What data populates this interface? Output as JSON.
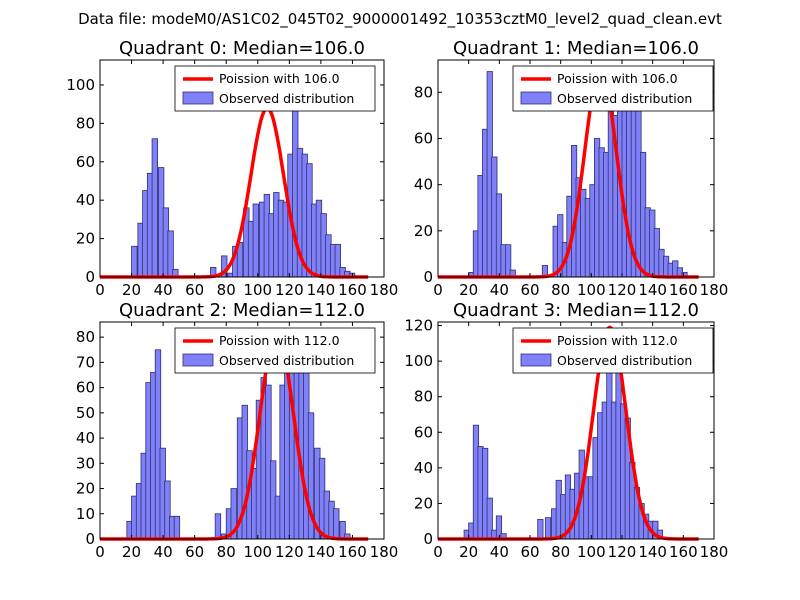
{
  "suptitle": "Data file: modeM0/AS1C02_045T02_9000001492_10353cztM0_level2_quad_clean.evt",
  "colors": {
    "bar_fill": "#8080f8",
    "bar_edge": "#303070",
    "poisson_line": "#ff0000"
  },
  "chart_data": [
    {
      "type": "bar",
      "title": "Quadrant 0: Median=106.0",
      "xlim": [
        0,
        180
      ],
      "ylim": [
        0,
        113
      ],
      "xticks": [
        0,
        20,
        40,
        60,
        80,
        100,
        120,
        140,
        160,
        180
      ],
      "yticks": [
        0,
        20,
        40,
        60,
        80,
        100
      ],
      "bin_width": 3.5,
      "legend": [
        "Poission with 106.0",
        "Observed distribution"
      ],
      "bins": [
        [
          20,
          16
        ],
        [
          24,
          28
        ],
        [
          27,
          45
        ],
        [
          30,
          54
        ],
        [
          33,
          72
        ],
        [
          37,
          57
        ],
        [
          40,
          36
        ],
        [
          43,
          24
        ],
        [
          46,
          4
        ],
        [
          70,
          5
        ],
        [
          77,
          11
        ],
        [
          81,
          2
        ],
        [
          84,
          16
        ],
        [
          87,
          18
        ],
        [
          91,
          36
        ],
        [
          94,
          29
        ],
        [
          97,
          38
        ],
        [
          101,
          39
        ],
        [
          104,
          43
        ],
        [
          107,
          33
        ],
        [
          110,
          44
        ],
        [
          113,
          40
        ],
        [
          116,
          39
        ],
        [
          119,
          64
        ],
        [
          122,
          108
        ],
        [
          125,
          67
        ],
        [
          128,
          64
        ],
        [
          131,
          59
        ],
        [
          134,
          38
        ],
        [
          137,
          40
        ],
        [
          140,
          33
        ],
        [
          143,
          22
        ],
        [
          146,
          17
        ],
        [
          149,
          17
        ],
        [
          152,
          5
        ],
        [
          155,
          3
        ],
        [
          158,
          2
        ]
      ],
      "poisson": {
        "mean": 106,
        "peak": 88
      }
    },
    {
      "type": "bar",
      "title": "Quadrant 1: Median=106.0",
      "xlim": [
        0,
        180
      ],
      "ylim": [
        0,
        94
      ],
      "xticks": [
        0,
        20,
        40,
        60,
        80,
        100,
        120,
        140,
        160,
        180
      ],
      "yticks": [
        0,
        20,
        40,
        60,
        80
      ],
      "bin_width": 3.5,
      "legend": [
        "Poission with 106.0",
        "Observed distribution"
      ],
      "bins": [
        [
          20,
          2
        ],
        [
          23,
          20
        ],
        [
          26,
          44
        ],
        [
          29,
          64
        ],
        [
          32,
          89
        ],
        [
          35,
          52
        ],
        [
          38,
          36
        ],
        [
          41,
          14
        ],
        [
          44,
          14
        ],
        [
          47,
          3
        ],
        [
          68,
          5
        ],
        [
          75,
          22
        ],
        [
          78,
          27
        ],
        [
          81,
          15
        ],
        [
          84,
          35
        ],
        [
          87,
          57
        ],
        [
          90,
          43
        ],
        [
          93,
          38
        ],
        [
          96,
          34
        ],
        [
          99,
          40
        ],
        [
          102,
          60
        ],
        [
          105,
          56
        ],
        [
          108,
          54
        ],
        [
          111,
          78
        ],
        [
          114,
          70
        ],
        [
          117,
          74
        ],
        [
          120,
          76
        ],
        [
          123,
          80
        ],
        [
          126,
          77
        ],
        [
          129,
          81
        ],
        [
          132,
          54
        ],
        [
          135,
          30
        ],
        [
          138,
          29
        ],
        [
          141,
          21
        ],
        [
          144,
          12
        ],
        [
          147,
          9
        ],
        [
          150,
          6
        ],
        [
          153,
          7
        ],
        [
          156,
          4
        ],
        [
          159,
          2
        ]
      ],
      "poisson": {
        "mean": 106,
        "peak": 90
      }
    },
    {
      "type": "bar",
      "title": "Quadrant 2: Median=112.0",
      "xlim": [
        0,
        180
      ],
      "ylim": [
        0,
        86
      ],
      "xticks": [
        0,
        20,
        40,
        60,
        80,
        100,
        120,
        140,
        160,
        180
      ],
      "yticks": [
        0,
        10,
        20,
        30,
        40,
        50,
        60,
        70,
        80
      ],
      "bin_width": 3.5,
      "legend": [
        "Poission with 112.0",
        "Observed distribution"
      ],
      "bins": [
        [
          17,
          7
        ],
        [
          20,
          17
        ],
        [
          23,
          22
        ],
        [
          26,
          34
        ],
        [
          29,
          62
        ],
        [
          32,
          66
        ],
        [
          35,
          75
        ],
        [
          38,
          36
        ],
        [
          41,
          23
        ],
        [
          44,
          9
        ],
        [
          47,
          9
        ],
        [
          73,
          10
        ],
        [
          77,
          2
        ],
        [
          80,
          12
        ],
        [
          83,
          20
        ],
        [
          87,
          48
        ],
        [
          90,
          53
        ],
        [
          93,
          35
        ],
        [
          96,
          28
        ],
        [
          99,
          55
        ],
        [
          102,
          64
        ],
        [
          105,
          61
        ],
        [
          108,
          31
        ],
        [
          111,
          17
        ],
        [
          114,
          61
        ],
        [
          117,
          79
        ],
        [
          120,
          74
        ],
        [
          123,
          74
        ],
        [
          126,
          79
        ],
        [
          129,
          83
        ],
        [
          132,
          50
        ],
        [
          136,
          36
        ],
        [
          139,
          32
        ],
        [
          142,
          19
        ],
        [
          145,
          15
        ],
        [
          148,
          12
        ],
        [
          152,
          7
        ],
        [
          155,
          2
        ]
      ],
      "poisson": {
        "mean": 112,
        "peak": 82
      }
    },
    {
      "type": "bar",
      "title": "Quadrant 3: Median=112.0",
      "xlim": [
        0,
        180
      ],
      "ylim": [
        0,
        122
      ],
      "xticks": [
        0,
        20,
        40,
        60,
        80,
        100,
        120,
        140,
        160,
        180
      ],
      "yticks": [
        0,
        20,
        40,
        60,
        80,
        100,
        120
      ],
      "bin_width": 3.5,
      "legend": [
        "Poission with 112.0",
        "Observed distribution"
      ],
      "bins": [
        [
          17,
          5
        ],
        [
          20,
          9
        ],
        [
          23,
          64
        ],
        [
          26,
          52
        ],
        [
          29,
          51
        ],
        [
          32,
          23
        ],
        [
          35,
          5
        ],
        [
          38,
          13
        ],
        [
          41,
          3
        ],
        [
          65,
          11
        ],
        [
          70,
          12
        ],
        [
          74,
          17
        ],
        [
          77,
          33
        ],
        [
          80,
          25
        ],
        [
          83,
          36
        ],
        [
          86,
          28
        ],
        [
          89,
          37
        ],
        [
          92,
          50
        ],
        [
          95,
          35
        ],
        [
          98,
          35
        ],
        [
          101,
          57
        ],
        [
          104,
          71
        ],
        [
          107,
          77
        ],
        [
          110,
          107
        ],
        [
          113,
          77
        ],
        [
          116,
          106
        ],
        [
          119,
          76
        ],
        [
          122,
          68
        ],
        [
          125,
          43
        ],
        [
          128,
          29
        ],
        [
          131,
          20
        ],
        [
          134,
          14
        ],
        [
          137,
          10
        ],
        [
          140,
          10
        ],
        [
          143,
          5
        ]
      ],
      "poisson": {
        "mean": 112,
        "peak": 119
      }
    }
  ]
}
